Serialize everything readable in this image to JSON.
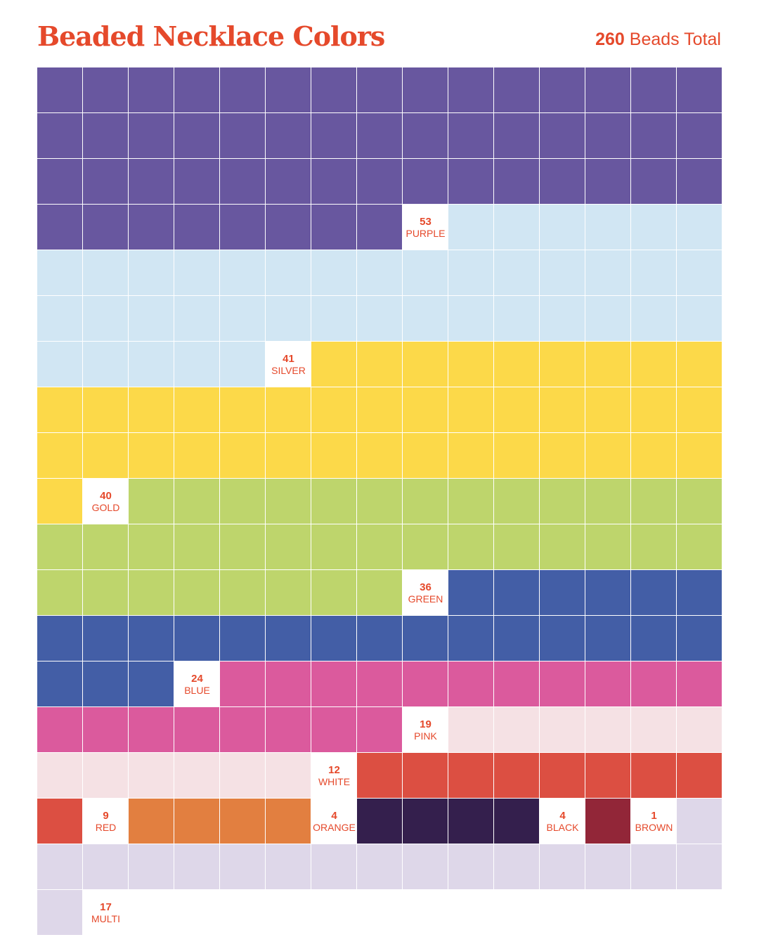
{
  "header": {
    "title": "Beaded Necklace Colors",
    "total_count": "260",
    "total_label": "Beads Total"
  },
  "chart_data": {
    "type": "waffle",
    "title": "Beaded Necklace Colors",
    "subtitle": "260 Beads Total",
    "total": 260,
    "columns": 15,
    "categories": [
      {
        "name": "PURPLE",
        "count": 53,
        "color": "#68579f"
      },
      {
        "name": "SILVER",
        "count": 41,
        "color": "#d1e6f3"
      },
      {
        "name": "GOLD",
        "count": 40,
        "color": "#fcd949"
      },
      {
        "name": "GREEN",
        "count": 36,
        "color": "#bed56c"
      },
      {
        "name": "BLUE",
        "count": 24,
        "color": "#435ea6"
      },
      {
        "name": "PINK",
        "count": 19,
        "color": "#db5a9d"
      },
      {
        "name": "WHITE",
        "count": 12,
        "color": "#f5e1e4"
      },
      {
        "name": "RED",
        "count": 9,
        "color": "#dc4f42"
      },
      {
        "name": "ORANGE",
        "count": 4,
        "color": "#e27f40"
      },
      {
        "name": "BLACK",
        "count": 4,
        "color": "#341f4d"
      },
      {
        "name": "BROWN",
        "count": 1,
        "color": "#922638"
      },
      {
        "name": "MULTI",
        "count": 17,
        "color": "#ded7e9"
      }
    ]
  }
}
